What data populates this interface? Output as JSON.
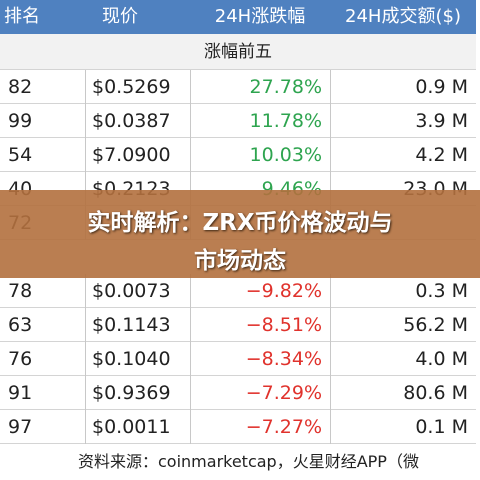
{
  "table": {
    "columns": [
      "排名",
      "现价",
      "24H涨跌幅",
      "24H成交额($)"
    ],
    "gainers_title": "涨幅前五",
    "gainers_rows": [
      [
        "82",
        "$0.5269",
        "27.78%",
        "0.9 M"
      ],
      [
        "99",
        "$0.0387",
        "11.78%",
        "3.9 M"
      ],
      [
        "54",
        "$7.0900",
        "10.03%",
        "4.2 M"
      ],
      [
        "40",
        "$0.2123",
        "9.46%",
        "23.0 M"
      ],
      [
        "72"
      ]
    ],
    "losers_rows": [
      [
        "78",
        "$0.0073",
        "−9.82%",
        "0.3 M"
      ],
      [
        "63",
        "$0.1143",
        "−8.51%",
        "56.2 M"
      ],
      [
        "76",
        "$0.1040",
        "−8.34%",
        "4.0 M"
      ],
      [
        "91",
        "$0.9369",
        "−7.29%",
        "80.6 M"
      ],
      [
        "97",
        "$0.0011",
        "−7.27%",
        "0.1 M"
      ]
    ],
    "footer": "资料来源：coinmarketcap，火星财经APP（微"
  },
  "banner": {
    "lines": [
      "实时解析：ZRX币价格波动与",
      "市场动态"
    ]
  }
}
